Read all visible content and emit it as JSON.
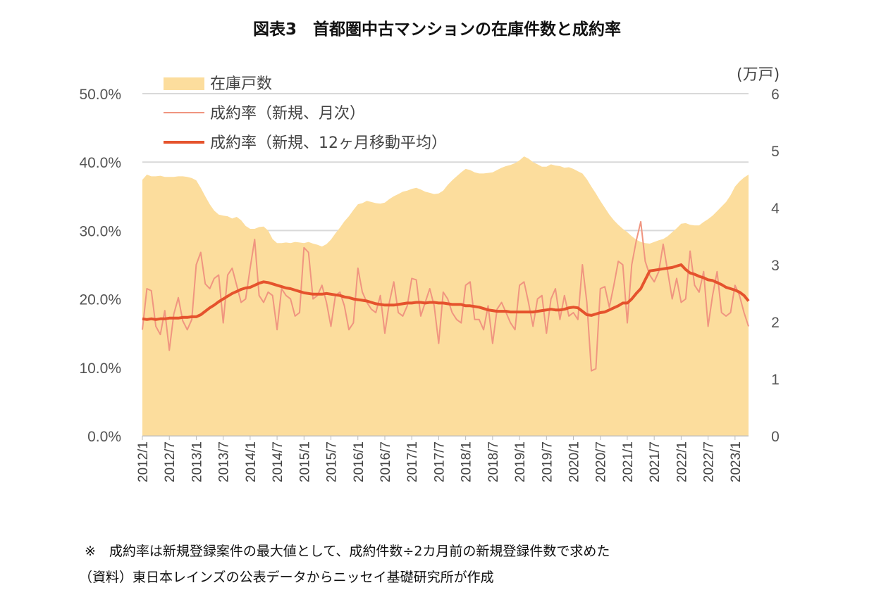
{
  "title": "図表3　首都圏中古マンションの在庫件数と成約率",
  "notes": [
    "※　成約率は新規登録案件の最大値として、成約件数÷2カ月前の新規登録件数で求めた",
    "（資料）東日本レインズの公表データからニッセイ基礎研究所が作成"
  ],
  "chart_data": {
    "type": "area+line",
    "title": "図表3　首都圏中古マンションの在庫件数と成約率",
    "start": "2012/1",
    "x_tick_labels": [
      "2012/1",
      "2012/7",
      "2013/1",
      "2013/7",
      "2014/1",
      "2014/7",
      "2015/1",
      "2015/7",
      "2016/1",
      "2016/7",
      "2017/1",
      "2017/7",
      "2018/1",
      "2018/7",
      "2019/1",
      "2019/7",
      "2020/1",
      "2020/7",
      "2021/1",
      "2021/7",
      "2022/1",
      "2022/7",
      "2023/1"
    ],
    "y_left": {
      "ticks": [
        "0.0%",
        "10.0%",
        "20.0%",
        "30.0%",
        "40.0%",
        "50.0%"
      ],
      "range": [
        0,
        50
      ]
    },
    "y_right": {
      "label": "(万戸)",
      "ticks": [
        "0",
        "1",
        "2",
        "3",
        "4",
        "5",
        "6"
      ],
      "range": [
        0,
        6
      ]
    },
    "legend_position": "top-left",
    "colors": {
      "inventory": "#fcdd9d",
      "monthly": "#f09580",
      "ma": "#e5532d",
      "grid": "#d9d9d9"
    },
    "series": [
      {
        "name": "在庫戸数",
        "axis": "right",
        "kind": "area",
        "values": [
          4.49,
          4.58,
          4.55,
          4.55,
          4.56,
          4.54,
          4.54,
          4.54,
          4.55,
          4.55,
          4.54,
          4.52,
          4.48,
          4.35,
          4.2,
          4.06,
          3.95,
          3.88,
          3.86,
          3.85,
          3.81,
          3.84,
          3.78,
          3.68,
          3.63,
          3.63,
          3.66,
          3.67,
          3.6,
          3.45,
          3.38,
          3.38,
          3.39,
          3.38,
          3.4,
          3.39,
          3.38,
          3.4,
          3.37,
          3.35,
          3.32,
          3.36,
          3.44,
          3.55,
          3.65,
          3.76,
          3.85,
          3.96,
          4.06,
          4.08,
          4.12,
          4.1,
          4.08,
          4.07,
          4.09,
          4.15,
          4.2,
          4.24,
          4.28,
          4.3,
          4.33,
          4.35,
          4.32,
          4.28,
          4.26,
          4.24,
          4.25,
          4.3,
          4.4,
          4.48,
          4.55,
          4.62,
          4.68,
          4.66,
          4.62,
          4.6,
          4.6,
          4.61,
          4.62,
          4.66,
          4.7,
          4.73,
          4.75,
          4.78,
          4.83,
          4.9,
          4.86,
          4.8,
          4.76,
          4.72,
          4.72,
          4.76,
          4.74,
          4.73,
          4.7,
          4.71,
          4.68,
          4.64,
          4.6,
          4.5,
          4.37,
          4.25,
          4.12,
          4.0,
          3.88,
          3.78,
          3.7,
          3.63,
          3.57,
          3.5,
          3.44,
          3.4,
          3.38,
          3.37,
          3.4,
          3.43,
          3.45,
          3.5,
          3.57,
          3.64,
          3.72,
          3.73,
          3.7,
          3.69,
          3.69,
          3.75,
          3.8,
          3.86,
          3.94,
          4.02,
          4.1,
          4.22,
          4.37,
          4.46,
          4.53,
          4.58
        ]
      },
      {
        "name": "成約率（新規、月次）",
        "axis": "left",
        "kind": "line",
        "values": [
          15.5,
          21.5,
          21.2,
          16.0,
          14.8,
          18.3,
          12.5,
          17.8,
          20.2,
          16.8,
          15.5,
          17.0,
          25.0,
          26.8,
          22.2,
          21.5,
          23.0,
          23.5,
          16.5,
          23.5,
          24.5,
          22.0,
          19.5,
          20.0,
          24.5,
          28.7,
          20.5,
          19.5,
          21.0,
          20.5,
          15.5,
          21.5,
          20.5,
          20.0,
          17.5,
          18.0,
          27.5,
          26.8,
          20.0,
          20.5,
          22.0,
          19.5,
          16.0,
          20.5,
          21.0,
          19.0,
          15.5,
          16.5,
          24.5,
          21.0,
          19.5,
          18.5,
          18.0,
          20.5,
          15.0,
          19.5,
          22.5,
          18.0,
          17.5,
          19.0,
          23.0,
          22.8,
          17.5,
          19.5,
          21.5,
          19.0,
          13.5,
          21.0,
          20.0,
          18.0,
          17.0,
          16.5,
          22.0,
          22.5,
          17.0,
          17.0,
          15.5,
          19.0,
          13.5,
          18.5,
          19.5,
          18.0,
          16.5,
          15.5,
          22.0,
          22.5,
          19.5,
          16.0,
          20.0,
          20.5,
          15.0,
          20.0,
          21.5,
          17.0,
          20.5,
          17.5,
          18.0,
          17.0,
          25.0,
          19.5,
          9.5,
          9.8,
          21.5,
          21.8,
          18.8,
          22.0,
          25.5,
          25.0,
          16.5,
          25.0,
          28.5,
          31.3,
          25.5,
          23.5,
          22.5,
          24.0,
          28.0,
          24.0,
          20.0,
          23.0,
          19.5,
          20.0,
          27.0,
          22.0,
          21.0,
          24.0,
          16.0,
          20.5,
          24.0,
          18.0,
          17.5,
          18.0,
          22.0,
          20.5,
          18.0,
          16.0
        ]
      },
      {
        "name": "成約率（新規、12ヶ月移動平均）",
        "axis": "left",
        "kind": "line",
        "values": [
          17.1,
          17.0,
          17.1,
          17.0,
          17.1,
          17.1,
          17.2,
          17.2,
          17.2,
          17.3,
          17.3,
          17.4,
          17.4,
          17.7,
          18.2,
          18.7,
          19.1,
          19.6,
          20.0,
          20.4,
          20.8,
          21.1,
          21.4,
          21.6,
          21.7,
          22.0,
          22.3,
          22.5,
          22.4,
          22.2,
          22.0,
          21.8,
          21.6,
          21.5,
          21.3,
          21.1,
          20.9,
          20.8,
          20.7,
          20.7,
          20.7,
          20.8,
          20.7,
          20.6,
          20.5,
          20.3,
          20.2,
          20.0,
          19.9,
          19.8,
          19.7,
          19.5,
          19.3,
          19.2,
          19.1,
          19.1,
          19.1,
          19.2,
          19.3,
          19.4,
          19.4,
          19.5,
          19.5,
          19.4,
          19.5,
          19.5,
          19.4,
          19.4,
          19.3,
          19.2,
          19.2,
          19.2,
          19.0,
          19.0,
          18.9,
          18.8,
          18.6,
          18.4,
          18.3,
          18.2,
          18.2,
          18.2,
          18.1,
          18.1,
          18.1,
          18.1,
          18.1,
          18.1,
          18.2,
          18.3,
          18.4,
          18.5,
          18.4,
          18.4,
          18.5,
          18.7,
          18.8,
          18.7,
          18.2,
          17.7,
          17.6,
          17.8,
          18.0,
          18.1,
          18.4,
          18.7,
          19.0,
          19.4,
          19.4,
          20.0,
          20.8,
          21.5,
          22.8,
          24.1,
          24.2,
          24.3,
          24.4,
          24.5,
          24.6,
          24.8,
          25.0,
          24.3,
          23.8,
          23.6,
          23.3,
          23.1,
          22.8,
          22.7,
          22.4,
          22.1,
          21.7,
          21.5,
          21.3,
          21.0,
          20.5,
          19.7
        ]
      }
    ]
  }
}
